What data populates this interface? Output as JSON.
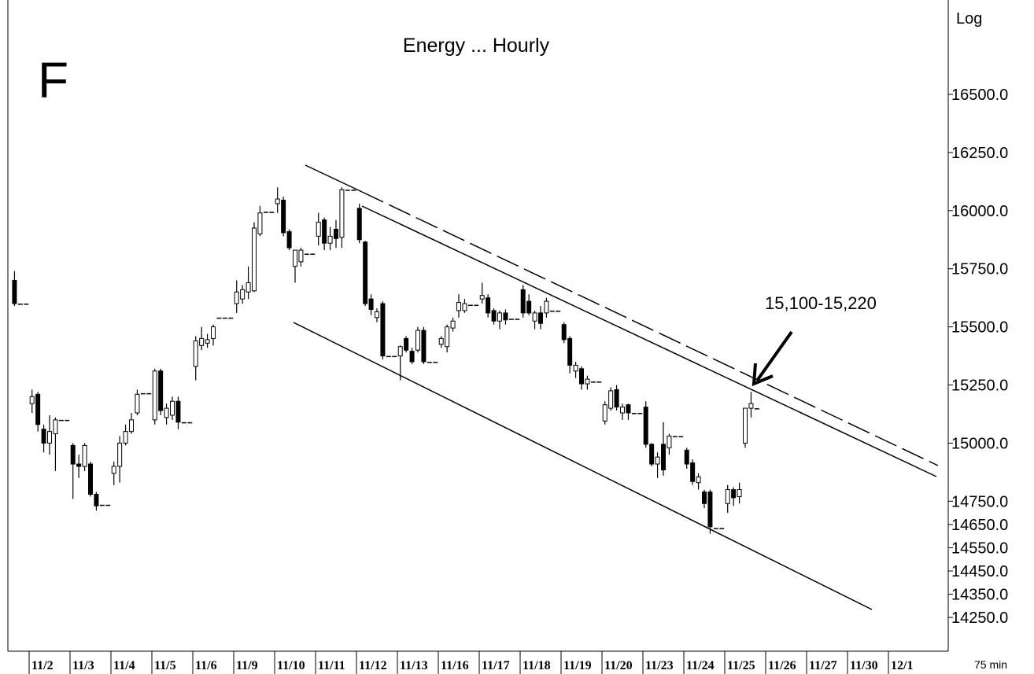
{
  "chart_data": {
    "type": "candlestick",
    "title": "Energy ... Hourly",
    "panel_label": "F",
    "annotation": "15,100-15,220",
    "scale_label": "Log",
    "interval_label": "75 min",
    "categories": [
      "11/2",
      "11/3",
      "11/4",
      "11/5",
      "11/6",
      "11/9",
      "11/10",
      "11/11",
      "11/12",
      "11/13",
      "11/16",
      "11/17",
      "11/18",
      "11/19",
      "11/20",
      "11/23",
      "11/24",
      "11/25",
      "11/26",
      "11/27",
      "11/30",
      "12/1"
    ],
    "up_color": "#ffffff",
    "down_color": "#000000",
    "ylim": [
      14105,
      16906
    ],
    "yticks": [
      {
        "value": 16500,
        "label": "16500.0"
      },
      {
        "value": 16250,
        "label": "16250.0"
      },
      {
        "value": 16000,
        "label": "16000.0"
      },
      {
        "value": 15750,
        "label": "15750.0"
      },
      {
        "value": 15500,
        "label": "15500.0"
      },
      {
        "value": 15250,
        "label": "15250.0"
      },
      {
        "value": 15000,
        "label": "15000.0"
      },
      {
        "value": 14750,
        "label": "14750.0"
      },
      {
        "value": 14650,
        "label": "14650.0"
      },
      {
        "value": 14550,
        "label": "14550.0"
      },
      {
        "value": 14450,
        "label": "14450.0"
      },
      {
        "value": 14350,
        "label": "14350.0"
      },
      {
        "value": 14250,
        "label": "14250.0"
      }
    ],
    "ohlc": [
      [
        15700,
        15740,
        15590,
        15600
      ],
      [
        15600,
        15600,
        15600,
        15600
      ],
      [
        15600,
        15600,
        15600,
        15600
      ],
      [
        15170,
        15230,
        15130,
        15200
      ],
      [
        15210,
        15220,
        15050,
        15080
      ],
      [
        15060,
        15080,
        14960,
        15000
      ],
      [
        15000,
        15120,
        14950,
        15050
      ],
      [
        15040,
        15110,
        14880,
        15100
      ],
      [
        15100,
        15100,
        15100,
        15100
      ],
      [
        15100,
        15100,
        15100,
        15100
      ],
      [
        14990,
        15000,
        14760,
        14910
      ],
      [
        14910,
        14950,
        14850,
        14900
      ],
      [
        14900,
        15000,
        14880,
        14990
      ],
      [
        14910,
        14920,
        14770,
        14780
      ],
      [
        14780,
        14790,
        14710,
        14730
      ],
      [
        14735,
        14735,
        14735,
        14735
      ],
      [
        14735,
        14735,
        14735,
        14735
      ],
      [
        14870,
        14920,
        14820,
        14900
      ],
      [
        14900,
        15030,
        14830,
        15000
      ],
      [
        15000,
        15080,
        14990,
        15050
      ],
      [
        15050,
        15130,
        15040,
        15100
      ],
      [
        15130,
        15230,
        15120,
        15210
      ],
      [
        15215,
        15215,
        15215,
        15215
      ],
      [
        15215,
        15215,
        15215,
        15215
      ],
      [
        15100,
        15320,
        15080,
        15310
      ],
      [
        15310,
        15320,
        15120,
        15140
      ],
      [
        15110,
        15170,
        15080,
        15150
      ],
      [
        15120,
        15200,
        15100,
        15180
      ],
      [
        15180,
        15200,
        15060,
        15090
      ],
      [
        15090,
        15090,
        15090,
        15090
      ],
      [
        15090,
        15090,
        15090,
        15090
      ],
      [
        15330,
        15460,
        15270,
        15440
      ],
      [
        15420,
        15500,
        15400,
        15450
      ],
      [
        15430,
        15470,
        15410,
        15445
      ],
      [
        15450,
        15510,
        15420,
        15500
      ],
      [
        15540,
        15540,
        15540,
        15540
      ],
      [
        15540,
        15540,
        15540,
        15540
      ],
      [
        15540,
        15540,
        15540,
        15540
      ],
      [
        15600,
        15700,
        15560,
        15650
      ],
      [
        15620,
        15680,
        15600,
        15660
      ],
      [
        15650,
        15760,
        15620,
        15690
      ],
      [
        15655,
        15950,
        15650,
        15925
      ],
      [
        15900,
        16020,
        15890,
        15990
      ],
      [
        15995,
        15995,
        15995,
        15995
      ],
      [
        15995,
        15995,
        15995,
        15995
      ],
      [
        16030,
        16100,
        15990,
        16050
      ],
      [
        16045,
        16060,
        15890,
        15905
      ],
      [
        15910,
        15920,
        15830,
        15840
      ],
      [
        15760,
        15830,
        15690,
        15830
      ],
      [
        15780,
        15840,
        15760,
        15830
      ],
      [
        15815,
        15815,
        15815,
        15815
      ],
      [
        15815,
        15815,
        15815,
        15815
      ],
      [
        15890,
        15990,
        15850,
        15950
      ],
      [
        15960,
        15970,
        15830,
        15860
      ],
      [
        15860,
        15930,
        15830,
        15890
      ],
      [
        15920,
        15960,
        15840,
        15880
      ],
      [
        15885,
        16100,
        15840,
        16090
      ],
      [
        16090,
        16090,
        16090,
        16090
      ],
      [
        16090,
        16090,
        16090,
        16090
      ],
      [
        16010,
        16030,
        15860,
        15875
      ],
      [
        15865,
        15870,
        15590,
        15600
      ],
      [
        15620,
        15640,
        15550,
        15575
      ],
      [
        15540,
        15580,
        15520,
        15565
      ],
      [
        15600,
        15610,
        15360,
        15375
      ],
      [
        15375,
        15375,
        15375,
        15375
      ],
      [
        15375,
        15375,
        15375,
        15375
      ],
      [
        15375,
        15420,
        15270,
        15415
      ],
      [
        15450,
        15460,
        15390,
        15400
      ],
      [
        15395,
        15410,
        15340,
        15350
      ],
      [
        15400,
        15500,
        15390,
        15485
      ],
      [
        15485,
        15500,
        15340,
        15350
      ],
      [
        15350,
        15350,
        15350,
        15350
      ],
      [
        15350,
        15350,
        15350,
        15350
      ],
      [
        15425,
        15460,
        15410,
        15450
      ],
      [
        15415,
        15510,
        15390,
        15500
      ],
      [
        15495,
        15540,
        15480,
        15525
      ],
      [
        15570,
        15640,
        15540,
        15605
      ],
      [
        15570,
        15620,
        15560,
        15600
      ],
      [
        15595,
        15595,
        15595,
        15595
      ],
      [
        15595,
        15595,
        15595,
        15595
      ],
      [
        15620,
        15690,
        15600,
        15635
      ],
      [
        15625,
        15640,
        15540,
        15560
      ],
      [
        15570,
        15580,
        15510,
        15525
      ],
      [
        15525,
        15570,
        15490,
        15560
      ],
      [
        15560,
        15575,
        15510,
        15530
      ],
      [
        15535,
        15535,
        15535,
        15535
      ],
      [
        15535,
        15535,
        15535,
        15535
      ],
      [
        15660,
        15680,
        15540,
        15560
      ],
      [
        15610,
        15640,
        15550,
        15560
      ],
      [
        15525,
        15570,
        15490,
        15560
      ],
      [
        15560,
        15590,
        15490,
        15515
      ],
      [
        15560,
        15625,
        15540,
        15610
      ],
      [
        15570,
        15570,
        15570,
        15570
      ],
      [
        15570,
        15570,
        15570,
        15570
      ],
      [
        15510,
        15520,
        15430,
        15445
      ],
      [
        15450,
        15460,
        15300,
        15335
      ],
      [
        15310,
        15350,
        15280,
        15335
      ],
      [
        15320,
        15330,
        15230,
        15255
      ],
      [
        15255,
        15290,
        15230,
        15275
      ],
      [
        15265,
        15265,
        15265,
        15265
      ],
      [
        15265,
        15265,
        15265,
        15265
      ],
      [
        15095,
        15180,
        15080,
        15165
      ],
      [
        15150,
        15240,
        15140,
        15225
      ],
      [
        15230,
        15250,
        15140,
        15155
      ],
      [
        15130,
        15170,
        15100,
        15155
      ],
      [
        15165,
        15170,
        15100,
        15130
      ],
      [
        15130,
        15130,
        15130,
        15130
      ],
      [
        15130,
        15130,
        15130,
        15130
      ],
      [
        15155,
        15180,
        14980,
        14995
      ],
      [
        14995,
        15000,
        14900,
        14910
      ],
      [
        14910,
        14960,
        14850,
        14940
      ],
      [
        14995,
        15090,
        14860,
        14885
      ],
      [
        14980,
        15040,
        14950,
        15030
      ],
      [
        15030,
        15030,
        15030,
        15030
      ],
      [
        15030,
        15030,
        15030,
        15030
      ],
      [
        14970,
        14980,
        14890,
        14910
      ],
      [
        14915,
        14930,
        14820,
        14835
      ],
      [
        14830,
        14870,
        14800,
        14855
      ],
      [
        14790,
        14800,
        14720,
        14740
      ],
      [
        14790,
        14800,
        14610,
        14640
      ],
      [
        14635,
        14635,
        14635,
        14635
      ],
      [
        14635,
        14635,
        14635,
        14635
      ],
      [
        14740,
        14820,
        14700,
        14800
      ],
      [
        14800,
        14810,
        14730,
        14765
      ],
      [
        14770,
        14830,
        14740,
        14800
      ],
      [
        15000,
        15150,
        14980,
        15150
      ],
      [
        15150,
        15220,
        15110,
        15170
      ],
      [
        15150,
        15150,
        15150,
        15150
      ]
    ]
  }
}
